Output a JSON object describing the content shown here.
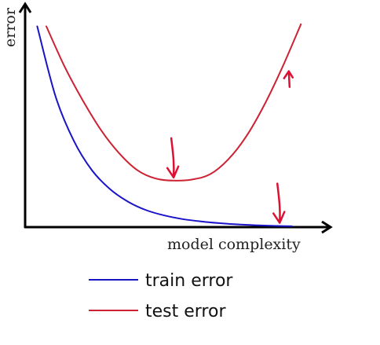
{
  "chart_data": {
    "type": "line",
    "title": "",
    "xlabel": "model complexity",
    "ylabel": "error",
    "xlim": [
      0,
      100
    ],
    "ylim": [
      0,
      100
    ],
    "grid": false,
    "legend_placement": "bottom-center",
    "series": [
      {
        "name": "train error",
        "color": "#1a14c8",
        "x": [
          4,
          10,
          16,
          22,
          28,
          34,
          40,
          46,
          52,
          58,
          64,
          70,
          76,
          82,
          88
        ],
        "y": [
          95,
          62,
          41,
          27,
          18,
          12,
          8,
          5.5,
          3.8,
          2.7,
          1.9,
          1.3,
          0.9,
          0.6,
          0.4
        ]
      },
      {
        "name": "test error",
        "color": "#cc2233",
        "x": [
          7,
          13,
          19,
          25,
          31,
          37,
          43,
          49,
          55,
          61,
          67,
          73,
          79,
          85,
          91
        ],
        "y": [
          95,
          76,
          60,
          46,
          35,
          27,
          23,
          22,
          22.5,
          25,
          32,
          43,
          58,
          76,
          96
        ]
      }
    ],
    "annotations": [
      {
        "kind": "hand-drawn-arrow",
        "direction": "down",
        "color": "#dd1133",
        "at_series": "test error",
        "x": 49
      },
      {
        "kind": "hand-drawn-arrow",
        "direction": "down",
        "color": "#dd1133",
        "at_series": "train error",
        "x": 84
      },
      {
        "kind": "hand-drawn-arrow",
        "direction": "up",
        "color": "#dd1133",
        "at_series": "test error",
        "x": 87
      }
    ]
  }
}
